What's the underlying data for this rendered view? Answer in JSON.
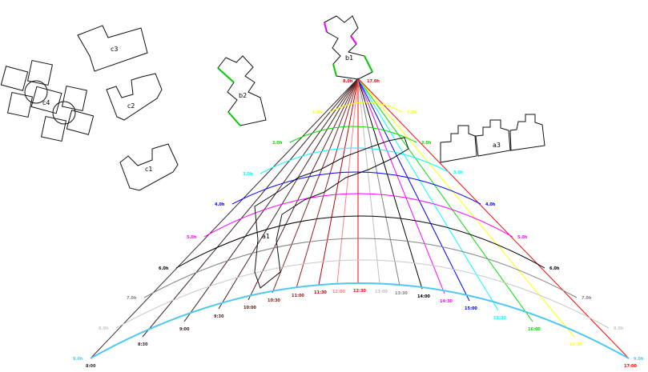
{
  "buildings": {
    "c1": "c1",
    "c2": "c2",
    "c3": "c3",
    "c4": "c4",
    "b1": "b1",
    "b2": "b2",
    "a3": "a3",
    "a1": "a1"
  },
  "diagram": {
    "apex_labels": {
      "left": "8.0h",
      "right": "17.0h"
    },
    "arcs": [
      {
        "label": "1.0h",
        "color": "#ffff00"
      },
      {
        "label": "2.0h",
        "color": "#00e000"
      },
      {
        "label": "3.0h",
        "color": "#00ffff"
      },
      {
        "label": "4.0h",
        "color": "#0000ff"
      },
      {
        "label": "5.0h",
        "color": "#ff00ff"
      },
      {
        "label": "6.0h",
        "color": "#000000"
      },
      {
        "label": "7.0h",
        "color": "#808080"
      },
      {
        "label": "8.0h",
        "color": "#c8c8c8"
      },
      {
        "label": "9.0h",
        "color": "#4fc8f0"
      }
    ],
    "rays": [
      {
        "label": "8:00",
        "color": "#3a2a2a"
      },
      {
        "label": "8:30",
        "color": "#3a2020"
      },
      {
        "label": "9:00",
        "color": "#402020"
      },
      {
        "label": "9:30",
        "color": "#502020"
      },
      {
        "label": "10:00",
        "color": "#602020"
      },
      {
        "label": "10:30",
        "color": "#802020"
      },
      {
        "label": "11:00",
        "color": "#a02020"
      },
      {
        "label": "11:30",
        "color": "#c00000"
      },
      {
        "label": "12:00",
        "color": "#ff8080"
      },
      {
        "label": "12:30",
        "color": "#ff0000"
      },
      {
        "label": "13:00",
        "color": "#c0c0c0"
      },
      {
        "label": "13:30",
        "color": "#808080"
      },
      {
        "label": "14:00",
        "color": "#000000"
      },
      {
        "label": "14:30",
        "color": "#ff00ff"
      },
      {
        "label": "15:00",
        "color": "#0000ff"
      },
      {
        "label": "15:30",
        "color": "#00ffff"
      },
      {
        "label": "16:00",
        "color": "#00e000"
      },
      {
        "label": "16:30",
        "color": "#ffff00"
      },
      {
        "label": "17:00",
        "color": "#ff0000"
      }
    ]
  }
}
